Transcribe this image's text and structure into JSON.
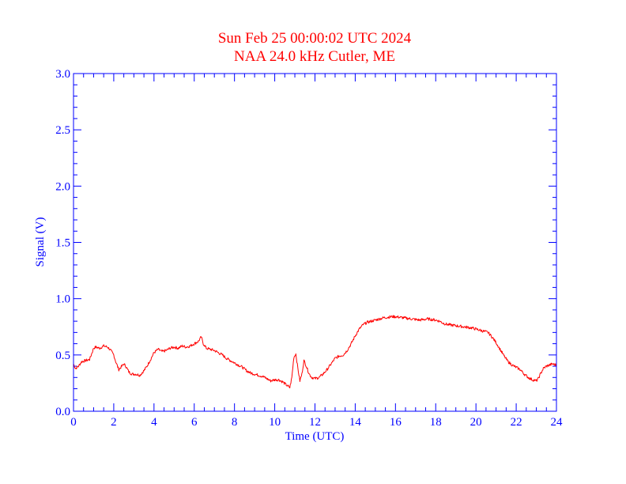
{
  "colors": {
    "axis": "#0000ff",
    "title": "#ff0000",
    "series": "#ff0000",
    "background": "#ffffff"
  },
  "chart_data": {
    "type": "line",
    "title": "Sun Feb 25 00:00:02 UTC 2024",
    "subtitle": "NAA 24.0 kHz Cutler, ME",
    "xlabel": "Time (UTC)",
    "ylabel": "Signal (V)",
    "xlim": [
      0,
      24
    ],
    "ylim": [
      0,
      3.0
    ],
    "xticks": [
      0,
      2,
      4,
      6,
      8,
      10,
      12,
      14,
      16,
      18,
      20,
      22,
      24
    ],
    "xtick_labels": [
      "0",
      "2",
      "4",
      "6",
      "8",
      "10",
      "12",
      "14",
      "16",
      "18",
      "20",
      "22",
      "24"
    ],
    "yticks": [
      0,
      0.5,
      1.0,
      1.5,
      2.0,
      2.5,
      3.0
    ],
    "ytick_labels": [
      "0.0",
      "0.5",
      "1.0",
      "1.5",
      "2.0",
      "2.5",
      "3.0"
    ],
    "grid": false,
    "series": [
      {
        "x": [
          0,
          0.1,
          0.25,
          0.4,
          0.6,
          0.8,
          1.0,
          1.1,
          1.3,
          1.5,
          1.7,
          1.85,
          2.0,
          2.1,
          2.25,
          2.35,
          2.5,
          2.6,
          2.75,
          2.9,
          3.1,
          3.3,
          3.5,
          3.65,
          3.8,
          4.0,
          4.2,
          4.4,
          4.6,
          4.8,
          5.0,
          5.2,
          5.4,
          5.6,
          5.8,
          6.0,
          6.2,
          6.35,
          6.45,
          6.6,
          6.8,
          7.0,
          7.2,
          7.4,
          7.6,
          7.8,
          8.0,
          8.2,
          8.4,
          8.6,
          8.8,
          9.0,
          9.2,
          9.4,
          9.6,
          9.8,
          10.0,
          10.2,
          10.4,
          10.6,
          10.75,
          10.85,
          10.95,
          11.05,
          11.15,
          11.25,
          11.35,
          11.45,
          11.55,
          11.65,
          11.75,
          11.85,
          12.0,
          12.2,
          12.4,
          12.6,
          12.8,
          13.0,
          13.2,
          13.4,
          13.6,
          13.8,
          14.0,
          14.2,
          14.4,
          14.6,
          14.8,
          15.0,
          15.2,
          15.4,
          15.6,
          15.8,
          16.0,
          16.2,
          16.4,
          16.6,
          16.8,
          17.0,
          17.2,
          17.4,
          17.6,
          17.8,
          18.0,
          18.2,
          18.4,
          18.6,
          18.8,
          19.0,
          19.2,
          19.4,
          19.6,
          19.8,
          20.0,
          20.2,
          20.4,
          20.6,
          20.8,
          21.0,
          21.2,
          21.4,
          21.6,
          21.8,
          22.0,
          22.2,
          22.4,
          22.6,
          22.8,
          23.0,
          23.1,
          23.2,
          23.35,
          23.5,
          23.65,
          23.8,
          24.0
        ],
        "values": [
          0.42,
          0.38,
          0.4,
          0.44,
          0.45,
          0.46,
          0.56,
          0.57,
          0.56,
          0.58,
          0.57,
          0.54,
          0.5,
          0.44,
          0.37,
          0.39,
          0.42,
          0.4,
          0.35,
          0.33,
          0.33,
          0.32,
          0.36,
          0.4,
          0.45,
          0.52,
          0.55,
          0.53,
          0.54,
          0.56,
          0.57,
          0.56,
          0.58,
          0.57,
          0.58,
          0.6,
          0.62,
          0.66,
          0.6,
          0.56,
          0.55,
          0.54,
          0.52,
          0.5,
          0.47,
          0.45,
          0.43,
          0.41,
          0.39,
          0.36,
          0.34,
          0.33,
          0.32,
          0.31,
          0.29,
          0.27,
          0.28,
          0.28,
          0.26,
          0.23,
          0.21,
          0.3,
          0.48,
          0.51,
          0.38,
          0.27,
          0.33,
          0.45,
          0.41,
          0.36,
          0.32,
          0.3,
          0.29,
          0.3,
          0.33,
          0.37,
          0.42,
          0.47,
          0.49,
          0.5,
          0.54,
          0.6,
          0.67,
          0.73,
          0.77,
          0.79,
          0.8,
          0.81,
          0.82,
          0.83,
          0.835,
          0.84,
          0.84,
          0.835,
          0.83,
          0.825,
          0.82,
          0.815,
          0.81,
          0.815,
          0.82,
          0.815,
          0.81,
          0.8,
          0.78,
          0.77,
          0.765,
          0.76,
          0.755,
          0.75,
          0.745,
          0.74,
          0.73,
          0.72,
          0.71,
          0.7,
          0.66,
          0.61,
          0.55,
          0.49,
          0.44,
          0.41,
          0.39,
          0.37,
          0.33,
          0.3,
          0.28,
          0.27,
          0.29,
          0.33,
          0.38,
          0.4,
          0.41,
          0.42,
          0.41
        ]
      }
    ]
  }
}
